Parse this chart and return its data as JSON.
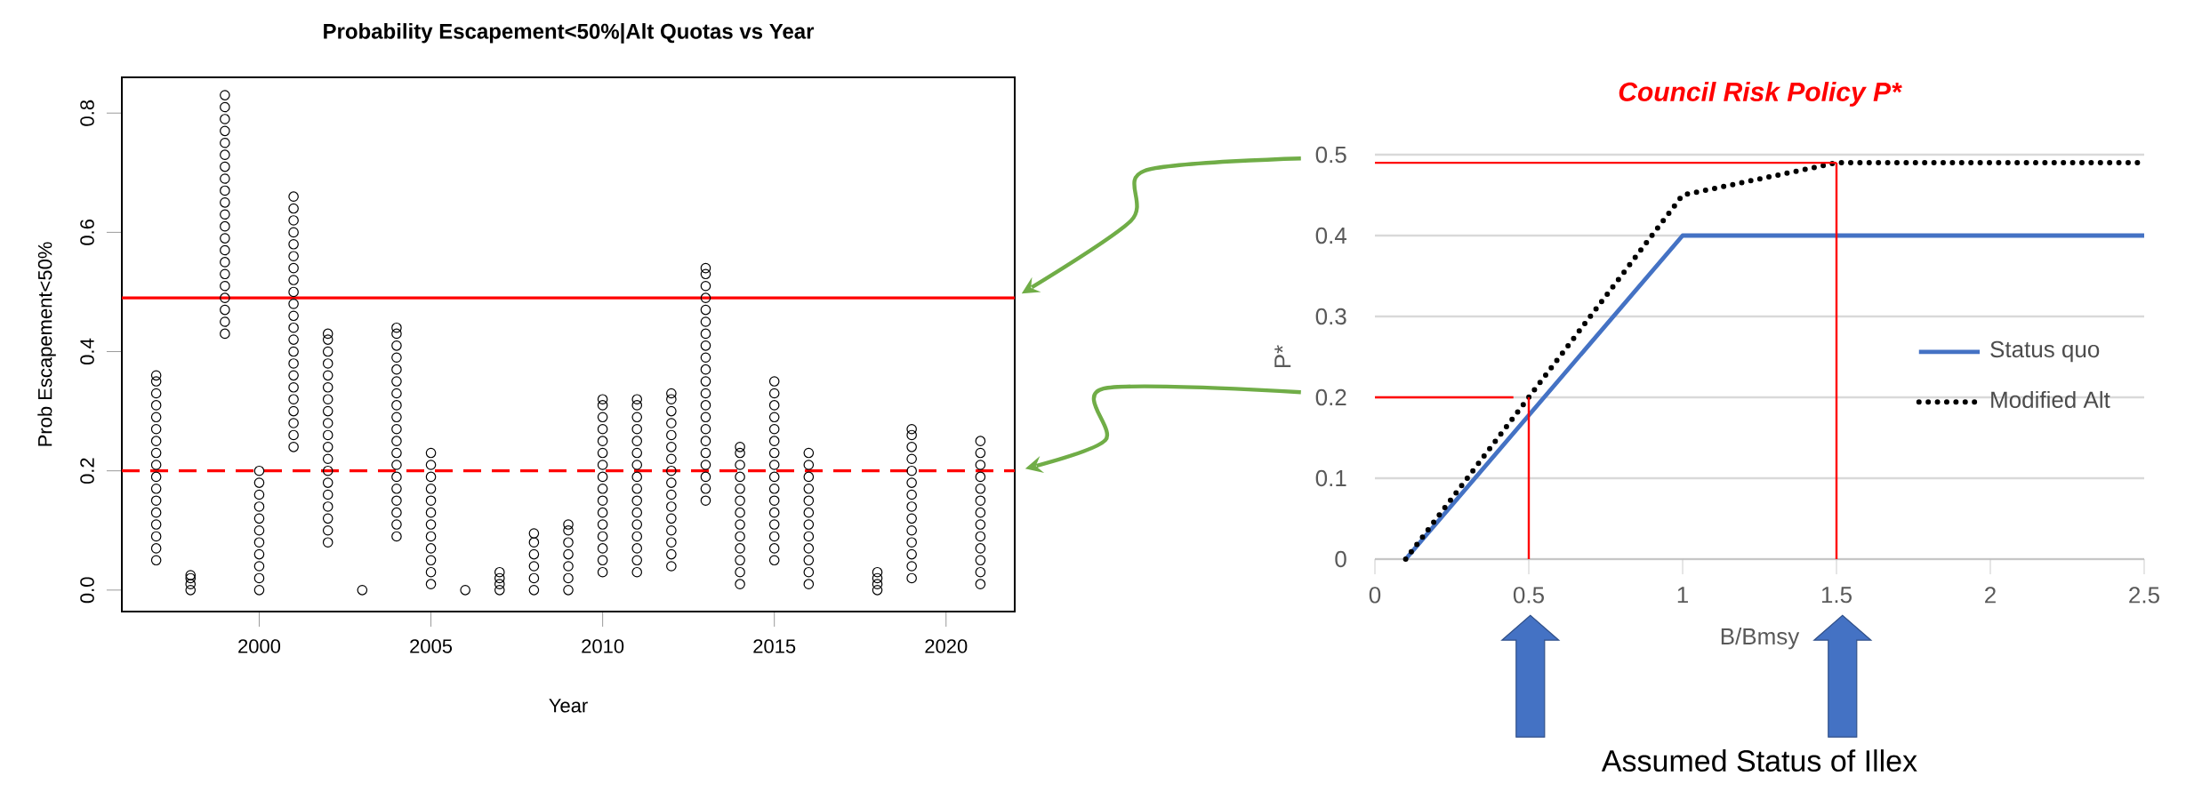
{
  "chart_data": [
    {
      "type": "scatter",
      "title": "Probability Escapement<50%|Alt Quotas vs Year",
      "xlabel": "Year",
      "ylabel": "Prob Escapement<50%",
      "xlim": [
        1996,
        2022
      ],
      "xticks": [
        2000,
        2005,
        2010,
        2015,
        2020
      ],
      "ylim": [
        -0.036,
        0.86
      ],
      "yticks": [
        {
          "value": 0,
          "label": "0.0"
        },
        0.2,
        0.4,
        0.6,
        0.8
      ],
      "marker": "circle",
      "ref_lines": [
        {
          "axis": "y",
          "value": 0.49,
          "color": "#ff0000"
        },
        {
          "axis": "y",
          "value": 0.2,
          "color": "#ff0000",
          "line_style": "dashed"
        }
      ],
      "series": [
        {
          "color": "#000000",
          "x": [
            1997,
            1997,
            1997,
            1997,
            1997,
            1997,
            1997,
            1997,
            1997,
            1997,
            1997,
            1997,
            1997,
            1997,
            1997,
            1997,
            1997
          ],
          "values": [
            0.05,
            0.07,
            0.09,
            0.11,
            0.13,
            0.15,
            0.17,
            0.19,
            0.21,
            0.23,
            0.25,
            0.27,
            0.29,
            0.31,
            0.33,
            0.35,
            0.36
          ]
        },
        {
          "color": "#000000",
          "x": [
            1998,
            1998,
            1998,
            1998
          ],
          "values": [
            0,
            0.01,
            0.02,
            0.025
          ]
        },
        {
          "color": "#000000",
          "x": [
            1999,
            1999,
            1999,
            1999,
            1999,
            1999,
            1999,
            1999,
            1999,
            1999,
            1999,
            1999,
            1999,
            1999,
            1999,
            1999,
            1999,
            1999,
            1999,
            1999,
            1999
          ],
          "values": [
            0.43,
            0.45,
            0.47,
            0.49,
            0.51,
            0.53,
            0.55,
            0.57,
            0.59,
            0.61,
            0.63,
            0.65,
            0.67,
            0.69,
            0.71,
            0.73,
            0.75,
            0.77,
            0.79,
            0.81,
            0.83
          ]
        },
        {
          "color": "#000000",
          "x": [
            2000,
            2000,
            2000,
            2000,
            2000,
            2000,
            2000,
            2000,
            2000,
            2000,
            2000
          ],
          "values": [
            0,
            0.02,
            0.04,
            0.06,
            0.08,
            0.1,
            0.12,
            0.14,
            0.16,
            0.18,
            0.2
          ]
        },
        {
          "color": "#000000",
          "x": [
            2001,
            2001,
            2001,
            2001,
            2001,
            2001,
            2001,
            2001,
            2001,
            2001,
            2001,
            2001,
            2001,
            2001,
            2001,
            2001,
            2001,
            2001,
            2001,
            2001,
            2001,
            2001
          ],
          "values": [
            0.24,
            0.26,
            0.28,
            0.3,
            0.32,
            0.34,
            0.36,
            0.38,
            0.4,
            0.42,
            0.44,
            0.46,
            0.48,
            0.5,
            0.52,
            0.54,
            0.56,
            0.58,
            0.6,
            0.62,
            0.64,
            0.66
          ]
        },
        {
          "color": "#000000",
          "x": [
            2002,
            2002,
            2002,
            2002,
            2002,
            2002,
            2002,
            2002,
            2002,
            2002,
            2002,
            2002,
            2002,
            2002,
            2002,
            2002,
            2002,
            2002,
            2002
          ],
          "values": [
            0.08,
            0.1,
            0.12,
            0.14,
            0.16,
            0.18,
            0.2,
            0.22,
            0.24,
            0.26,
            0.28,
            0.3,
            0.32,
            0.34,
            0.36,
            0.38,
            0.4,
            0.42,
            0.43
          ]
        },
        {
          "color": "#000000",
          "x": [
            2003
          ],
          "values": [
            0
          ]
        },
        {
          "color": "#000000",
          "x": [
            2004,
            2004,
            2004,
            2004,
            2004,
            2004,
            2004,
            2004,
            2004,
            2004,
            2004,
            2004,
            2004,
            2004,
            2004,
            2004,
            2004,
            2004,
            2004
          ],
          "values": [
            0.09,
            0.11,
            0.13,
            0.15,
            0.17,
            0.19,
            0.21,
            0.23,
            0.25,
            0.27,
            0.29,
            0.31,
            0.33,
            0.35,
            0.37,
            0.39,
            0.41,
            0.43,
            0.44
          ]
        },
        {
          "color": "#000000",
          "x": [
            2005,
            2005,
            2005,
            2005,
            2005,
            2005,
            2005,
            2005,
            2005,
            2005,
            2005,
            2005
          ],
          "values": [
            0.01,
            0.03,
            0.05,
            0.07,
            0.09,
            0.11,
            0.13,
            0.15,
            0.17,
            0.19,
            0.21,
            0.23
          ]
        },
        {
          "color": "#000000",
          "x": [
            2006
          ],
          "values": [
            0
          ]
        },
        {
          "color": "#000000",
          "x": [
            2007,
            2007,
            2007,
            2007
          ],
          "values": [
            0,
            0.01,
            0.02,
            0.03
          ]
        },
        {
          "color": "#000000",
          "x": [
            2008,
            2008,
            2008,
            2008,
            2008,
            2008
          ],
          "values": [
            0,
            0.02,
            0.04,
            0.06,
            0.08,
            0.095
          ]
        },
        {
          "color": "#000000",
          "x": [
            2009,
            2009,
            2009,
            2009,
            2009,
            2009,
            2009
          ],
          "values": [
            0,
            0.02,
            0.04,
            0.06,
            0.08,
            0.1,
            0.11
          ]
        },
        {
          "color": "#000000",
          "x": [
            2010,
            2010,
            2010,
            2010,
            2010,
            2010,
            2010,
            2010,
            2010,
            2010,
            2010,
            2010,
            2010,
            2010,
            2010,
            2010
          ],
          "values": [
            0.03,
            0.05,
            0.07,
            0.09,
            0.11,
            0.13,
            0.15,
            0.17,
            0.19,
            0.21,
            0.23,
            0.25,
            0.27,
            0.29,
            0.31,
            0.32
          ]
        },
        {
          "color": "#000000",
          "x": [
            2011,
            2011,
            2011,
            2011,
            2011,
            2011,
            2011,
            2011,
            2011,
            2011,
            2011,
            2011,
            2011,
            2011,
            2011,
            2011
          ],
          "values": [
            0.03,
            0.05,
            0.07,
            0.09,
            0.11,
            0.13,
            0.15,
            0.17,
            0.19,
            0.21,
            0.23,
            0.25,
            0.27,
            0.29,
            0.31,
            0.32
          ]
        },
        {
          "color": "#000000",
          "x": [
            2012,
            2012,
            2012,
            2012,
            2012,
            2012,
            2012,
            2012,
            2012,
            2012,
            2012,
            2012,
            2012,
            2012,
            2012,
            2012
          ],
          "values": [
            0.04,
            0.06,
            0.08,
            0.1,
            0.12,
            0.14,
            0.16,
            0.18,
            0.2,
            0.22,
            0.24,
            0.26,
            0.28,
            0.3,
            0.32,
            0.33
          ]
        },
        {
          "color": "#000000",
          "x": [
            2013,
            2013,
            2013,
            2013,
            2013,
            2013,
            2013,
            2013,
            2013,
            2013,
            2013,
            2013,
            2013,
            2013,
            2013,
            2013,
            2013,
            2013,
            2013,
            2013,
            2013
          ],
          "values": [
            0.15,
            0.17,
            0.19,
            0.21,
            0.23,
            0.25,
            0.27,
            0.29,
            0.31,
            0.33,
            0.35,
            0.37,
            0.39,
            0.41,
            0.43,
            0.45,
            0.47,
            0.49,
            0.51,
            0.53,
            0.54
          ]
        },
        {
          "color": "#000000",
          "x": [
            2014,
            2014,
            2014,
            2014,
            2014,
            2014,
            2014,
            2014,
            2014,
            2014,
            2014,
            2014,
            2014
          ],
          "values": [
            0.01,
            0.03,
            0.05,
            0.07,
            0.09,
            0.11,
            0.13,
            0.15,
            0.17,
            0.19,
            0.21,
            0.23,
            0.24
          ]
        },
        {
          "color": "#000000",
          "x": [
            2015,
            2015,
            2015,
            2015,
            2015,
            2015,
            2015,
            2015,
            2015,
            2015,
            2015,
            2015,
            2015,
            2015,
            2015,
            2015
          ],
          "values": [
            0.05,
            0.07,
            0.09,
            0.11,
            0.13,
            0.15,
            0.17,
            0.19,
            0.21,
            0.23,
            0.25,
            0.27,
            0.29,
            0.31,
            0.33,
            0.35
          ]
        },
        {
          "color": "#000000",
          "x": [
            2016,
            2016,
            2016,
            2016,
            2016,
            2016,
            2016,
            2016,
            2016,
            2016,
            2016,
            2016
          ],
          "values": [
            0.01,
            0.03,
            0.05,
            0.07,
            0.09,
            0.11,
            0.13,
            0.15,
            0.17,
            0.19,
            0.21,
            0.23
          ]
        },
        {
          "color": "#000000",
          "x": [
            2018,
            2018,
            2018,
            2018
          ],
          "values": [
            0,
            0.01,
            0.02,
            0.03
          ]
        },
        {
          "color": "#000000",
          "x": [
            2019,
            2019,
            2019,
            2019,
            2019,
            2019,
            2019,
            2019,
            2019,
            2019,
            2019,
            2019,
            2019,
            2019
          ],
          "values": [
            0.02,
            0.04,
            0.06,
            0.08,
            0.1,
            0.12,
            0.14,
            0.16,
            0.18,
            0.2,
            0.22,
            0.24,
            0.26,
            0.27
          ]
        },
        {
          "color": "#000000",
          "x": [
            2021,
            2021,
            2021,
            2021,
            2021,
            2021,
            2021,
            2021,
            2021,
            2021,
            2021,
            2021,
            2021
          ],
          "values": [
            0.01,
            0.03,
            0.05,
            0.07,
            0.09,
            0.11,
            0.13,
            0.15,
            0.17,
            0.19,
            0.21,
            0.23,
            0.25
          ]
        }
      ]
    },
    {
      "type": "line",
      "title": "Council Risk Policy P*",
      "xlabel": "B/Bmsy",
      "ylabel": "P*",
      "xlim": [
        0,
        2.5
      ],
      "xticks": [
        0,
        0.5,
        1,
        1.5,
        2,
        2.5
      ],
      "ylim": [
        0,
        0.5
      ],
      "yticks": [
        0,
        0.1,
        0.2,
        0.3,
        0.4,
        0.5
      ],
      "grid": "y",
      "legend": "right",
      "annotations": [
        "Assumed Status of Illex"
      ],
      "series": [
        {
          "name": "Status quo",
          "color": "#4472c4",
          "x": [
            0.1,
            1,
            2.5
          ],
          "values": [
            0,
            0.4,
            0.4
          ]
        },
        {
          "name": "Modified Alt",
          "color": "#000000",
          "line_style": "dotted",
          "x": [
            0.1,
            0.5,
            1,
            1.5,
            2.5
          ],
          "values": [
            0,
            0.2,
            0.45,
            0.49,
            0.49
          ]
        },
        {
          "color": "#ff0000",
          "x": [
            0.5,
            0.5
          ],
          "values": [
            0,
            0.2
          ]
        },
        {
          "color": "#ff0000",
          "x": [
            0,
            0.45
          ],
          "values": [
            0.2,
            0.2
          ]
        },
        {
          "color": "#ff0000",
          "x": [
            1.5,
            1.5
          ],
          "values": [
            0,
            0.49
          ]
        },
        {
          "color": "#ff0000",
          "x": [
            0,
            1.5
          ],
          "values": [
            0.49,
            0.49
          ]
        }
      ]
    }
  ]
}
